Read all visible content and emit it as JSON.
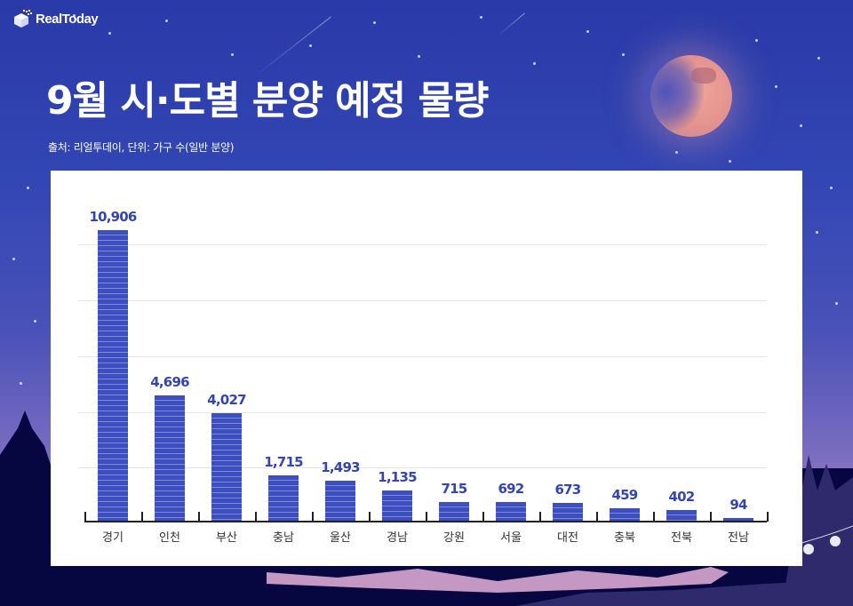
{
  "brand": {
    "logo_text": "RealToday"
  },
  "header": {
    "title": "9월 시·도별 분양 예정 물량",
    "subtitle": "출처: 리얼투데이, 단위: 가구 수(일반 분양)"
  },
  "colors": {
    "bar": "#3d4fbf",
    "value_label": "#3444b0",
    "background_top": "#2a3aa8",
    "background_bottom": "#b893c4"
  },
  "chart_data": {
    "type": "bar",
    "title": "9월 시·도별 분양 예정 물량",
    "subtitle": "출처: 리얼투데이, 단위: 가구 수(일반 분양)",
    "xlabel": "",
    "ylabel": "가구 수",
    "categories": [
      "경기",
      "인천",
      "부산",
      "충남",
      "울산",
      "경남",
      "강원",
      "서울",
      "대전",
      "충북",
      "전북",
      "전남"
    ],
    "values": [
      10906,
      4696,
      4027,
      1715,
      1493,
      1135,
      715,
      692,
      673,
      459,
      402,
      94
    ],
    "value_labels": [
      "10,906",
      "4,696",
      "4,027",
      "1,715",
      "1,493",
      "1,135",
      "715",
      "692",
      "673",
      "459",
      "402",
      "94"
    ],
    "ylim": [
      0,
      11000
    ],
    "grid": true,
    "legend": null
  }
}
